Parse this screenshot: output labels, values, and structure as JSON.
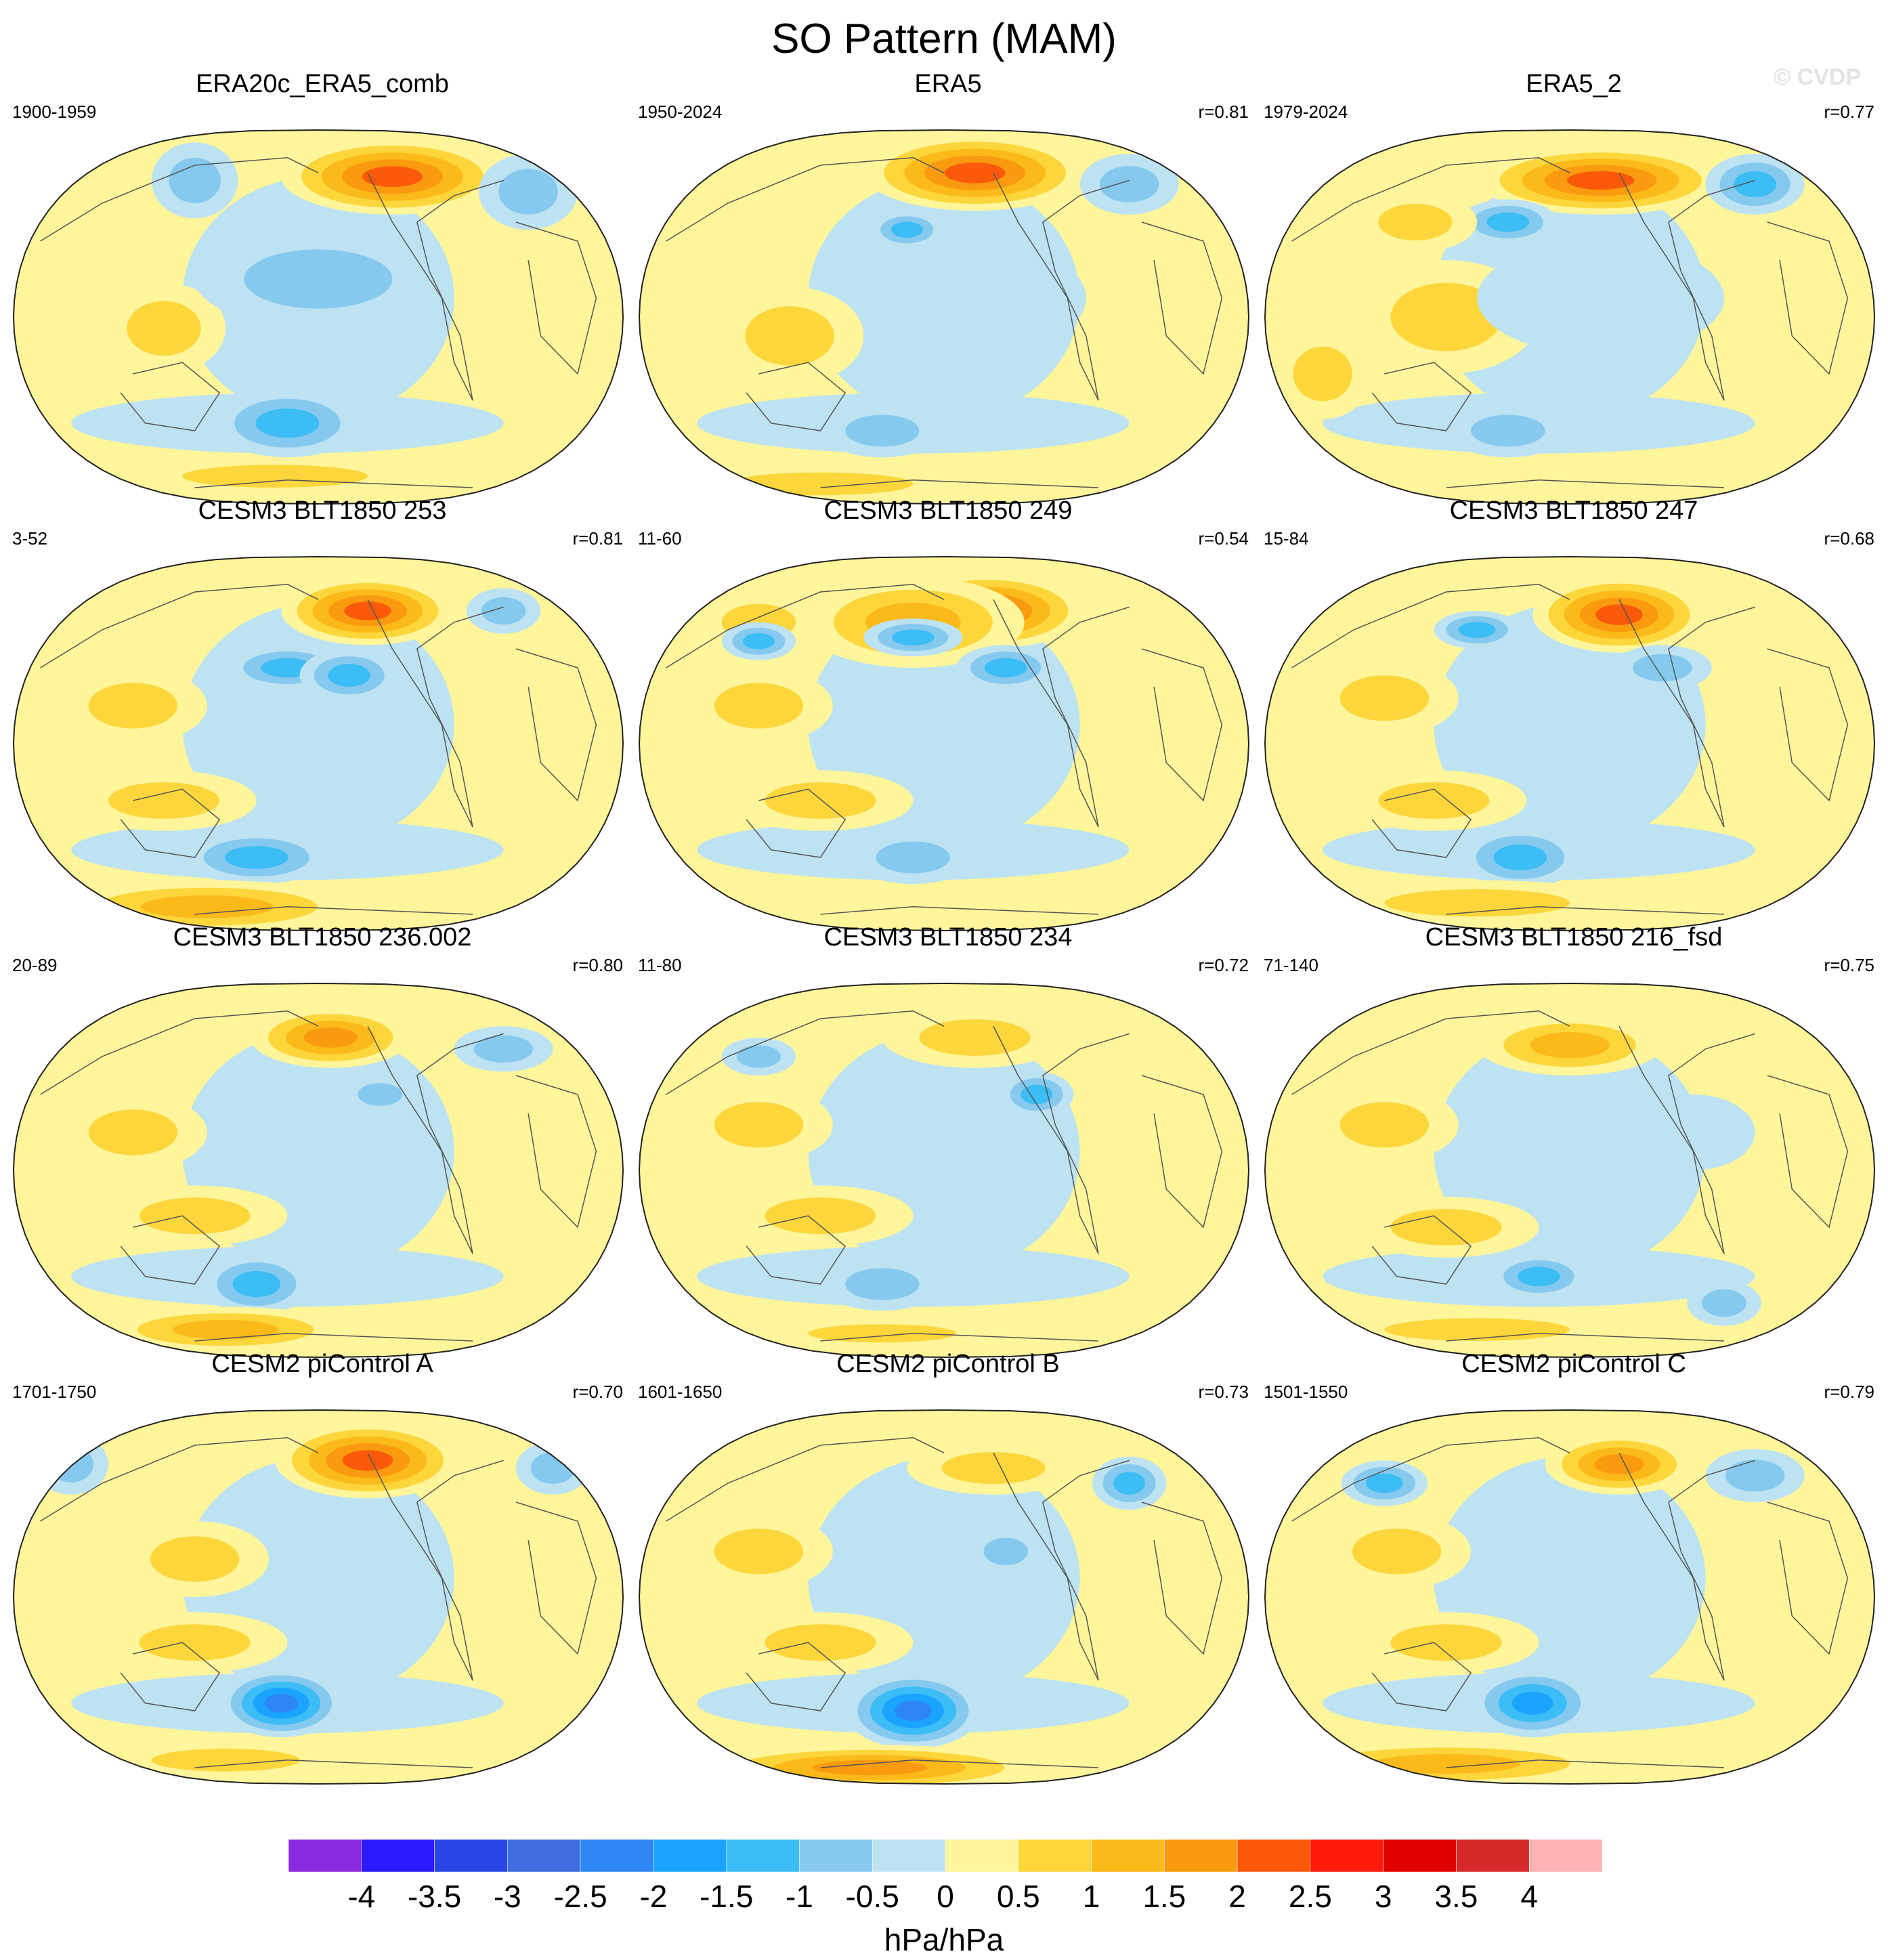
{
  "title": "SO Pattern (MAM)",
  "watermark": "© CVDP",
  "chart_data": {
    "type": "heatmap",
    "title": "SO Pattern (MAM)",
    "projection": "Robinson-like global map, Pacific-centred",
    "units": "hPa/hPa",
    "colorbar": {
      "ticks": [
        "-4",
        "-3.5",
        "-3",
        "-2.5",
        "-2",
        "-1.5",
        "-1",
        "-0.5",
        "0",
        "0.5",
        "1",
        "1.5",
        "2",
        "2.5",
        "3",
        "3.5",
        "4"
      ],
      "colors": [
        "#8a2be2",
        "#2a1aff",
        "#2a45e6",
        "#3e6ee0",
        "#2e86f2",
        "#1aa3ff",
        "#3cbdf5",
        "#86c9ef",
        "#bde2f2",
        "#fff59a",
        "#fcd63b",
        "#fcb91a",
        "#fa9a0e",
        "#fa5a0a",
        "#ff1a0a",
        "#e00000",
        "#d62a2a",
        "#ffb3b3"
      ],
      "label": "hPa/hPa"
    },
    "panels": [
      {
        "title": "ERA20c_ERA5_comb",
        "period": "1900-1959",
        "r": "",
        "features": [
          [
            0.62,
            0.87,
            0.18,
            0.1,
            2.4
          ],
          [
            0.3,
            0.86,
            0.07,
            0.1,
            -1.2
          ],
          [
            0.84,
            0.83,
            0.08,
            0.1,
            -1.0
          ],
          [
            0.25,
            0.47,
            0.1,
            0.12,
            0.8
          ],
          [
            0.5,
            0.6,
            0.2,
            0.13,
            -0.8
          ],
          [
            0.45,
            0.22,
            0.12,
            0.09,
            -1.6
          ],
          [
            0.43,
            0.08,
            0.25,
            0.05,
            1.1
          ],
          [
            0.2,
            0.7,
            0.08,
            0.1,
            0.7
          ]
        ]
      },
      {
        "title": "ERA5",
        "period": "1950-2024",
        "r": "r=0.81",
        "features": [
          [
            0.55,
            0.88,
            0.18,
            0.1,
            2.4
          ],
          [
            0.44,
            0.73,
            0.06,
            0.05,
            -1.6
          ],
          [
            0.8,
            0.85,
            0.08,
            0.08,
            -1.1
          ],
          [
            0.25,
            0.45,
            0.12,
            0.13,
            0.9
          ],
          [
            0.55,
            0.55,
            0.18,
            0.15,
            -0.7
          ],
          [
            0.4,
            0.2,
            0.1,
            0.07,
            -1.2
          ],
          [
            0.3,
            0.06,
            0.25,
            0.05,
            0.9
          ],
          [
            0.2,
            0.7,
            0.08,
            0.1,
            0.7
          ]
        ]
      },
      {
        "title": "ERA5_2",
        "period": "1979-2024",
        "r": "r=0.77",
        "features": [
          [
            0.55,
            0.86,
            0.2,
            0.09,
            2.4
          ],
          [
            0.8,
            0.85,
            0.08,
            0.08,
            -1.5
          ],
          [
            0.4,
            0.75,
            0.08,
            0.06,
            -1.3
          ],
          [
            0.3,
            0.5,
            0.15,
            0.15,
            0.9
          ],
          [
            0.55,
            0.55,
            0.2,
            0.15,
            -0.7
          ],
          [
            0.4,
            0.2,
            0.1,
            0.07,
            -0.9
          ],
          [
            0.1,
            0.35,
            0.08,
            0.12,
            0.8
          ],
          [
            0.25,
            0.75,
            0.1,
            0.08,
            0.8
          ]
        ]
      },
      {
        "title": "CESM3 BLT1850 253",
        "period": "3-52",
        "r": "r=0.81",
        "features": [
          [
            0.58,
            0.85,
            0.14,
            0.09,
            2.5
          ],
          [
            0.45,
            0.7,
            0.1,
            0.06,
            -1.5
          ],
          [
            0.8,
            0.85,
            0.06,
            0.06,
            -1.0
          ],
          [
            0.25,
            0.35,
            0.15,
            0.08,
            1.1
          ],
          [
            0.2,
            0.6,
            0.12,
            0.1,
            1.0
          ],
          [
            0.55,
            0.68,
            0.08,
            0.07,
            -1.6
          ],
          [
            0.4,
            0.2,
            0.12,
            0.07,
            -1.3
          ],
          [
            0.32,
            0.07,
            0.25,
            0.07,
            1.4
          ]
        ]
      },
      {
        "title": "CESM3 BLT1850 249",
        "period": "11-60",
        "r": "r=0.54",
        "features": [
          [
            0.57,
            0.85,
            0.16,
            0.1,
            2.6
          ],
          [
            0.45,
            0.82,
            0.18,
            0.12,
            1.3
          ],
          [
            0.2,
            0.82,
            0.1,
            0.08,
            1.1
          ],
          [
            0.2,
            0.77,
            0.06,
            0.05,
            -1.6
          ],
          [
            0.45,
            0.78,
            0.08,
            0.05,
            -1.5
          ],
          [
            0.6,
            0.7,
            0.08,
            0.06,
            -1.5
          ],
          [
            0.3,
            0.35,
            0.15,
            0.08,
            1.0
          ],
          [
            0.2,
            0.6,
            0.12,
            0.1,
            1.0
          ],
          [
            0.45,
            0.2,
            0.1,
            0.07,
            -0.9
          ]
        ]
      },
      {
        "title": "CESM3 BLT1850 247",
        "period": "15-84",
        "r": "r=0.68",
        "features": [
          [
            0.58,
            0.84,
            0.14,
            0.1,
            2.5
          ],
          [
            0.42,
            0.2,
            0.1,
            0.08,
            -1.7
          ],
          [
            0.35,
            0.8,
            0.07,
            0.05,
            -1.3
          ],
          [
            0.65,
            0.7,
            0.08,
            0.06,
            -1.2
          ],
          [
            0.28,
            0.35,
            0.15,
            0.08,
            1.0
          ],
          [
            0.2,
            0.62,
            0.12,
            0.1,
            1.0
          ],
          [
            0.35,
            0.08,
            0.25,
            0.06,
            1.0
          ]
        ]
      },
      {
        "title": "CESM3 BLT1850 236.002",
        "period": "20-89",
        "r": "r=0.80",
        "features": [
          [
            0.52,
            0.85,
            0.13,
            0.08,
            2.1
          ],
          [
            0.4,
            0.2,
            0.09,
            0.08,
            -1.6
          ],
          [
            0.35,
            0.08,
            0.2,
            0.06,
            1.3
          ],
          [
            0.8,
            0.82,
            0.08,
            0.06,
            -1.0
          ],
          [
            0.3,
            0.38,
            0.15,
            0.08,
            1.0
          ],
          [
            0.2,
            0.6,
            0.12,
            0.1,
            1.1
          ],
          [
            0.6,
            0.7,
            0.06,
            0.05,
            -1.0
          ]
        ]
      },
      {
        "title": "CESM3 BLT1850 234",
        "period": "11-80",
        "r": "r=0.72",
        "features": [
          [
            0.55,
            0.85,
            0.15,
            0.08,
            1.2
          ],
          [
            0.65,
            0.7,
            0.06,
            0.06,
            -1.5
          ],
          [
            0.3,
            0.38,
            0.15,
            0.08,
            1.0
          ],
          [
            0.2,
            0.62,
            0.12,
            0.1,
            1.0
          ],
          [
            0.4,
            0.2,
            0.1,
            0.07,
            -0.9
          ],
          [
            0.2,
            0.8,
            0.06,
            0.05,
            -1.1
          ],
          [
            0.4,
            0.07,
            0.2,
            0.04,
            0.8
          ]
        ]
      },
      {
        "title": "CESM3 BLT1850 216_fsd",
        "period": "71-140",
        "r": "r=0.75",
        "features": [
          [
            0.5,
            0.83,
            0.15,
            0.08,
            1.3
          ],
          [
            0.45,
            0.22,
            0.08,
            0.06,
            -1.3
          ],
          [
            0.75,
            0.15,
            0.06,
            0.06,
            -0.9
          ],
          [
            0.35,
            0.08,
            0.25,
            0.05,
            0.8
          ],
          [
            0.3,
            0.35,
            0.15,
            0.08,
            1.0
          ],
          [
            0.2,
            0.62,
            0.12,
            0.1,
            1.1
          ],
          [
            0.7,
            0.6,
            0.1,
            0.1,
            -0.7
          ]
        ]
      },
      {
        "title": "CESM2 piControl A",
        "period": "1701-1750",
        "r": "r=0.70",
        "features": [
          [
            0.58,
            0.86,
            0.15,
            0.1,
            2.5
          ],
          [
            0.44,
            0.22,
            0.1,
            0.09,
            -2.7
          ],
          [
            0.1,
            0.85,
            0.06,
            0.08,
            -1.2
          ],
          [
            0.88,
            0.84,
            0.06,
            0.07,
            -1.2
          ],
          [
            0.3,
            0.38,
            0.15,
            0.08,
            1.1
          ],
          [
            0.3,
            0.6,
            0.12,
            0.1,
            1.2
          ],
          [
            0.35,
            0.07,
            0.2,
            0.05,
            0.9
          ]
        ]
      },
      {
        "title": "CESM2 piControl B",
        "period": "1601-1650",
        "r": "r=0.73",
        "features": [
          [
            0.45,
            0.2,
            0.11,
            0.1,
            -2.6
          ],
          [
            0.38,
            0.05,
            0.28,
            0.06,
            1.8
          ],
          [
            0.8,
            0.8,
            0.06,
            0.07,
            -1.3
          ],
          [
            0.58,
            0.84,
            0.14,
            0.07,
            1.2
          ],
          [
            0.3,
            0.38,
            0.15,
            0.08,
            1.0
          ],
          [
            0.2,
            0.62,
            0.12,
            0.1,
            1.1
          ],
          [
            0.6,
            0.62,
            0.06,
            0.06,
            -1.0
          ]
        ]
      },
      {
        "title": "CESM2 piControl C",
        "period": "1501-1550",
        "r": "r=0.79",
        "features": [
          [
            0.58,
            0.85,
            0.12,
            0.08,
            2.0
          ],
          [
            0.44,
            0.22,
            0.1,
            0.09,
            -2.1
          ],
          [
            0.2,
            0.8,
            0.07,
            0.06,
            -1.5
          ],
          [
            0.8,
            0.82,
            0.08,
            0.07,
            -1.2
          ],
          [
            0.3,
            0.06,
            0.28,
            0.06,
            1.6
          ],
          [
            0.3,
            0.38,
            0.15,
            0.08,
            1.0
          ],
          [
            0.22,
            0.62,
            0.12,
            0.1,
            1.1
          ]
        ]
      }
    ]
  }
}
